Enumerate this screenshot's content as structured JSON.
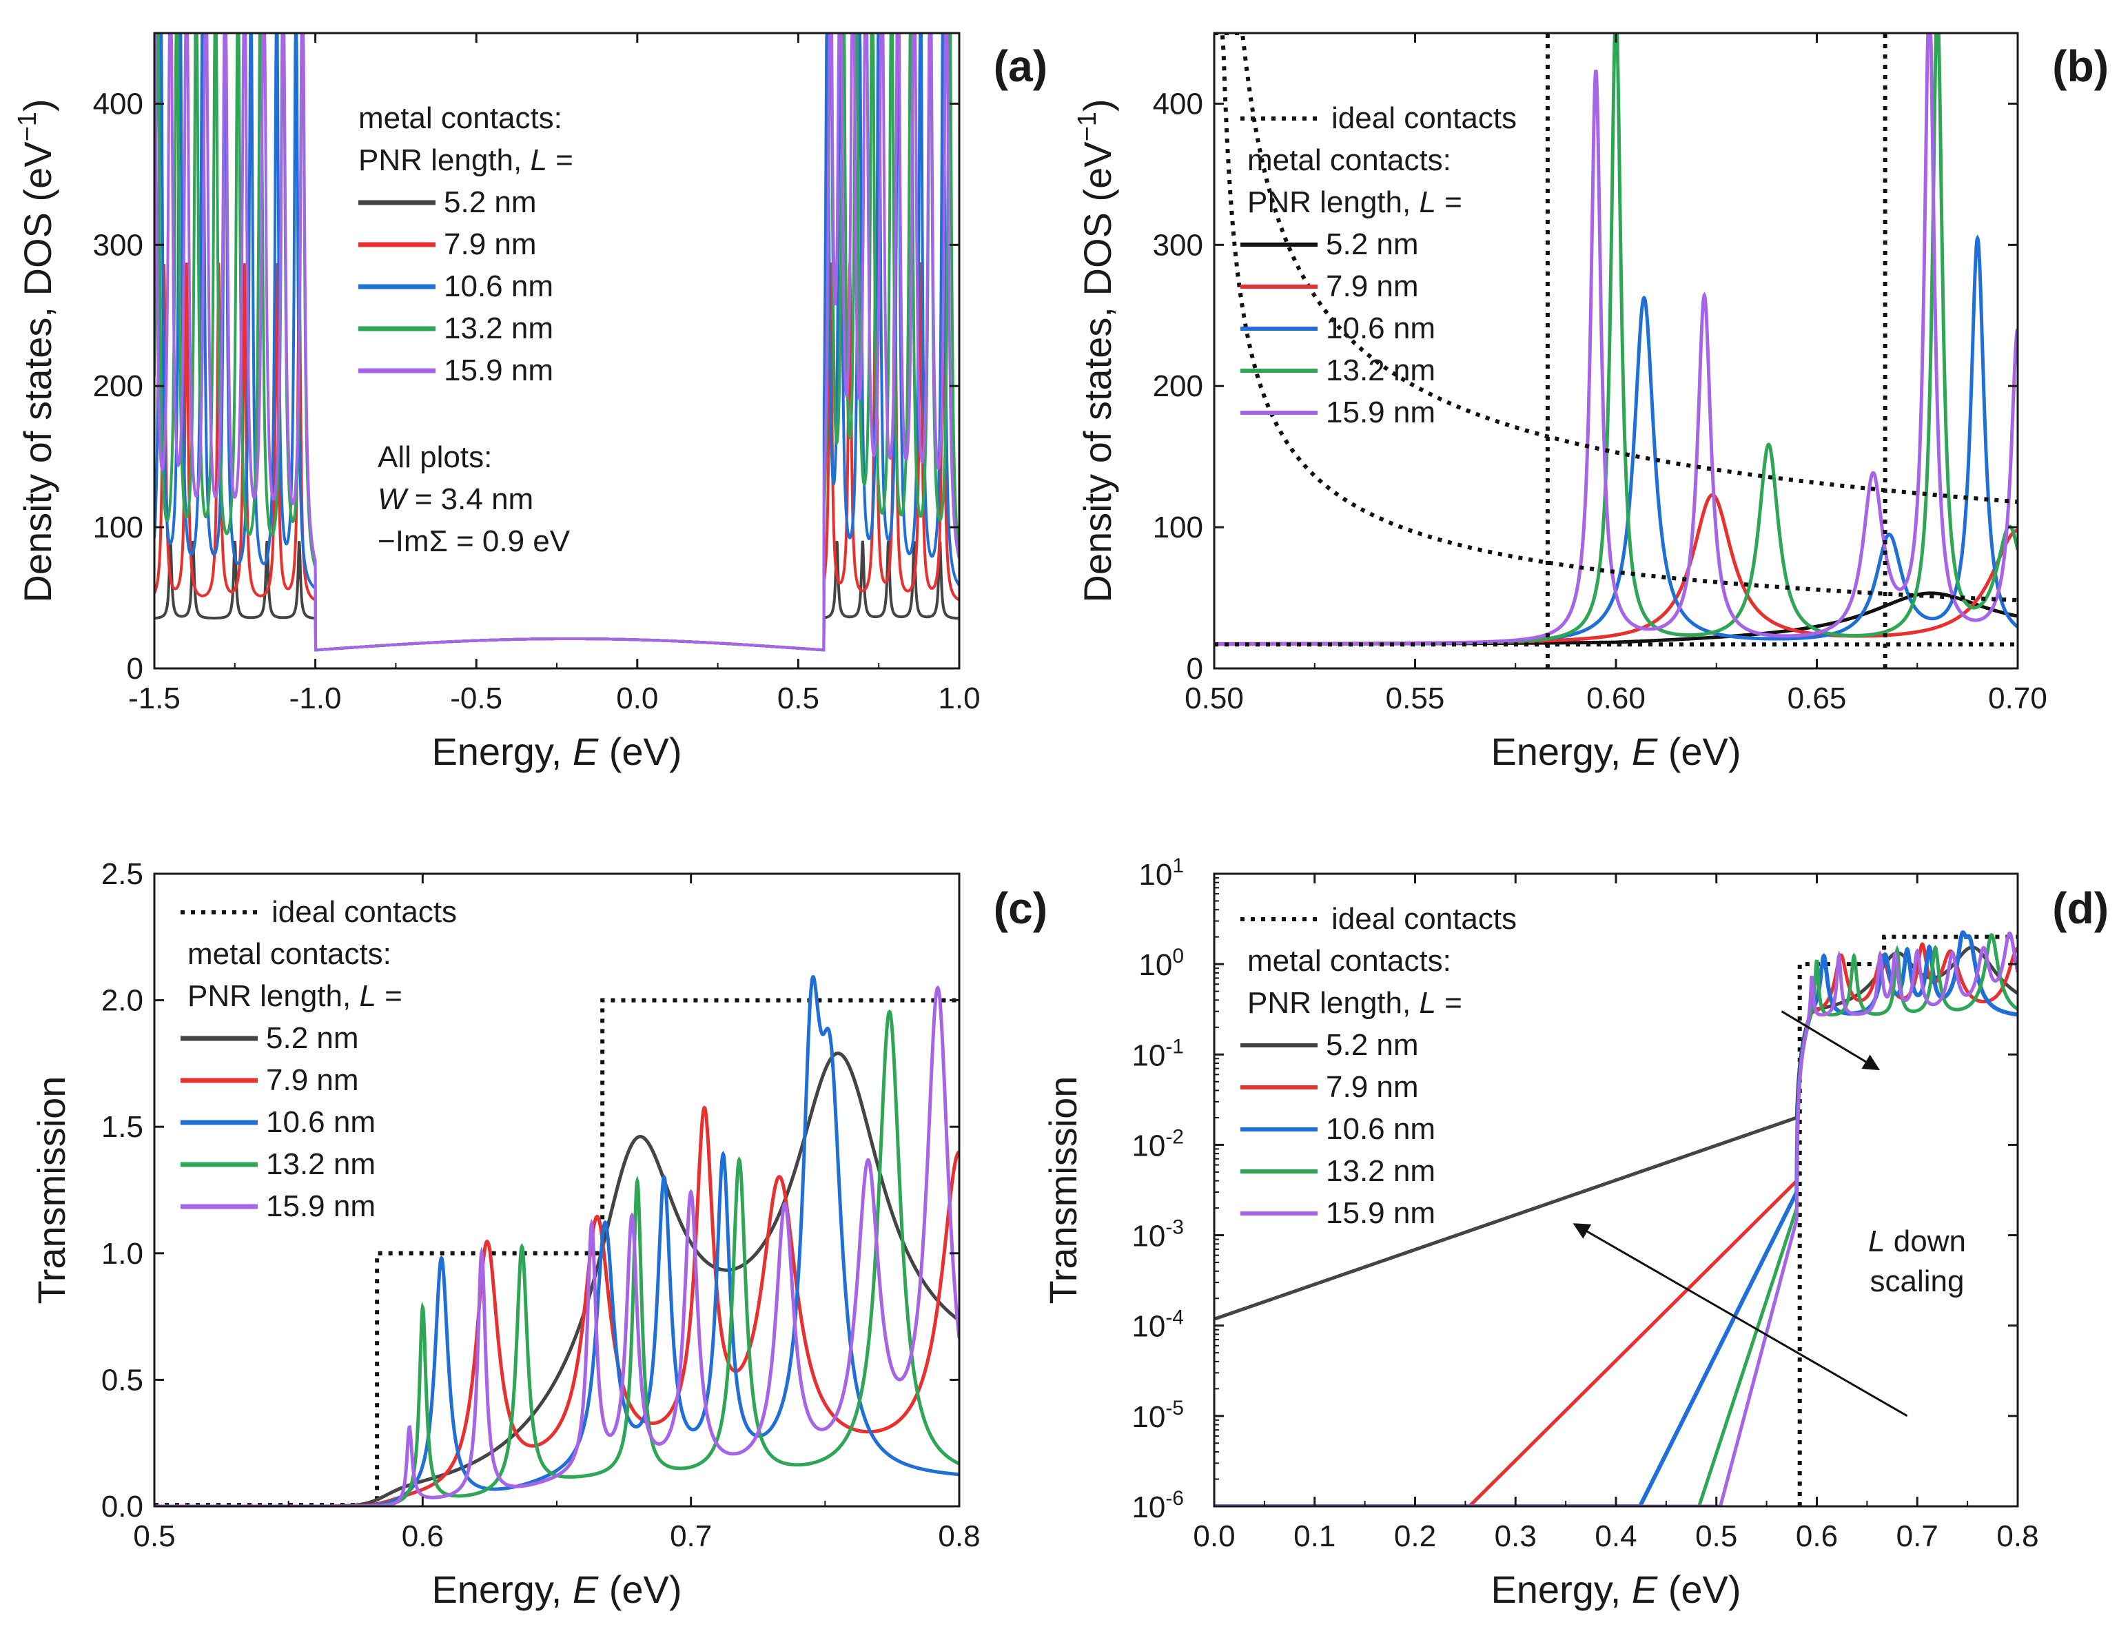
{
  "figure": {
    "panels": [
      {
        "id": "a",
        "label": "(a)",
        "xlabel_pre": "Energy, ",
        "xlabel_var": "E",
        "xlabel_unit": "  (eV)",
        "ylabel_text": "Density of states, DOS  (eV",
        "ylabel_sup": "−1",
        "ylabel_close": ")",
        "xticks": [
          "-1.5",
          "-1.0",
          "-0.5",
          "0.0",
          "0.5",
          "1.0"
        ],
        "yticks": [
          "0",
          "100",
          "200",
          "300",
          "400"
        ],
        "legend_header": [
          "metal contacts:",
          "PNR length, L ="
        ],
        "legend_items": [
          "5.2 nm",
          "7.9 nm",
          "10.6 nm",
          "13.2 nm",
          "15.9 nm"
        ],
        "note_lines": [
          "All plots:",
          "W = 3.4 nm",
          "−ImΣ = 0.9 eV"
        ]
      },
      {
        "id": "b",
        "label": "(b)",
        "xlabel_pre": "Energy, ",
        "xlabel_var": "E",
        "xlabel_unit": "  (eV)",
        "ylabel_text": "Density of states, DOS  (eV",
        "ylabel_sup": "−1",
        "ylabel_close": ")",
        "xticks": [
          "0.50",
          "0.55",
          "0.60",
          "0.65",
          "0.70"
        ],
        "yticks": [
          "0",
          "100",
          "200",
          "300",
          "400"
        ],
        "legend_ideal": "ideal contacts",
        "legend_header": [
          "metal contacts:",
          "PNR length, L ="
        ],
        "legend_items": [
          "5.2 nm",
          "7.9 nm",
          "10.6 nm",
          "13.2 nm",
          "15.9 nm"
        ]
      },
      {
        "id": "c",
        "label": "(c)",
        "xlabel_pre": "Energy, ",
        "xlabel_var": "E",
        "xlabel_unit": "  (eV)",
        "ylabel_text": "Transmission",
        "xticks": [
          "0.5",
          "0.6",
          "0.7",
          "0.8"
        ],
        "yticks": [
          "0.0",
          "0.5",
          "1.0",
          "1.5",
          "2.0",
          "2.5"
        ],
        "legend_ideal": "ideal contacts",
        "legend_header": [
          "metal contacts:",
          "PNR length, L ="
        ],
        "legend_items": [
          "5.2 nm",
          "7.9 nm",
          "10.6 nm",
          "13.2 nm",
          "15.9 nm"
        ]
      },
      {
        "id": "d",
        "label": "(d)",
        "xlabel_pre": "Energy, ",
        "xlabel_var": "E",
        "xlabel_unit": "  (eV)",
        "ylabel_text": "Transmission",
        "xticks": [
          "0.0",
          "0.1",
          "0.2",
          "0.3",
          "0.4",
          "0.5",
          "0.6",
          "0.7",
          "0.8"
        ],
        "yticks_base": "10",
        "yticks_exp": [
          "-6",
          "-5",
          "-4",
          "-3",
          "-2",
          "-1",
          "0",
          "1"
        ],
        "legend_ideal": "ideal contacts",
        "legend_header": [
          "metal contacts:",
          "PNR length, L ="
        ],
        "legend_items": [
          "5.2 nm",
          "7.9 nm",
          "10.6 nm",
          "13.2 nm",
          "15.9 nm"
        ],
        "annotation": [
          "L down",
          "scaling"
        ]
      }
    ]
  },
  "colors": {
    "L5.2": "#444444",
    "L7.9": "#e8312f",
    "L10.6": "#1f6fd6",
    "L13.2": "#2ea656",
    "L15.9": "#a565e6",
    "ideal": "#111111",
    "b_L5.2": "#111111"
  },
  "chart_data": [
    {
      "panel": "a",
      "type": "line",
      "xlabel": "Energy, E (eV)",
      "ylabel": "Density of states, DOS (eV^-1)",
      "xlim": [
        -1.5,
        1.0
      ],
      "ylim": [
        0,
        450
      ],
      "bandgap_edges": {
        "valence_top": -1.0,
        "conduction_bottom": 0.58
      },
      "gap_level": 17,
      "series": [
        {
          "name": "5.2 nm",
          "peaks_valence": [
            -1.45,
            -1.38,
            -1.25,
            -1.15,
            -1.05
          ],
          "peaks_conduction": [
            0.62,
            0.7,
            0.78,
            0.86,
            0.94
          ],
          "peak_height": 55,
          "band_level": 35
        },
        {
          "name": "7.9 nm",
          "peaks_valence": [
            -1.47,
            -1.4,
            -1.3,
            -1.22,
            -1.12,
            -1.05
          ],
          "peaks_conduction": [
            0.6,
            0.66,
            0.74,
            0.8,
            0.88,
            0.95
          ],
          "peak_height": 240,
          "band_level": 45
        },
        {
          "name": "10.6 nm",
          "peaks_valence": [
            -1.48,
            -1.42,
            -1.35,
            -1.28,
            -1.2,
            -1.12,
            -1.06
          ],
          "peaks_conduction": [
            0.59,
            0.63,
            0.69,
            0.75,
            0.81,
            0.88,
            0.95
          ],
          "peak_height": 450,
          "band_level": 50
        },
        {
          "name": "13.2 nm",
          "peaks_valence": [
            -1.49,
            -1.43,
            -1.37,
            -1.31,
            -1.24,
            -1.17,
            -1.1,
            -1.04
          ],
          "peaks_conduction": [
            0.6,
            0.64,
            0.68,
            0.73,
            0.79,
            0.85,
            0.91,
            0.97
          ],
          "peak_height": 450,
          "band_level": 55
        },
        {
          "name": "15.9 nm",
          "peaks_valence": [
            -1.5,
            -1.45,
            -1.4,
            -1.34,
            -1.28,
            -1.22,
            -1.16,
            -1.1,
            -1.04
          ],
          "peaks_conduction": [
            0.6,
            0.63,
            0.67,
            0.71,
            0.76,
            0.81,
            0.86,
            0.91,
            0.96
          ],
          "peak_height": 450,
          "band_level": 55
        }
      ]
    },
    {
      "panel": "b",
      "type": "line",
      "xlabel": "Energy, E (eV)",
      "ylabel": "Density of states, DOS (eV^-1)",
      "xlim": [
        0.5,
        0.7
      ],
      "ylim": [
        0,
        450
      ],
      "ideal_contacts": {
        "band_edges": [
          0.583,
          0.667
        ],
        "baseline": 17
      },
      "series": [
        {
          "name": "5.2 nm",
          "peaks": [
            [
              0.678,
              30,
              0.018
            ]
          ],
          "baseline": 17
        },
        {
          "name": "7.9 nm",
          "peaks": [
            [
              0.624,
              105,
              0.006
            ],
            [
              0.7,
              80,
              0.008
            ]
          ],
          "baseline": 17
        },
        {
          "name": "10.6 nm",
          "peaks": [
            [
              0.607,
              245,
              0.003
            ],
            [
              0.668,
              75,
              0.004
            ],
            [
              0.69,
              285,
              0.002
            ]
          ],
          "baseline": 17
        },
        {
          "name": "13.2 nm",
          "peaks": [
            [
              0.6,
              450,
              0.0015
            ],
            [
              0.638,
              140,
              0.003
            ],
            [
              0.68,
              450,
              0.0015
            ],
            [
              0.698,
              80,
              0.004
            ]
          ],
          "baseline": 17
        },
        {
          "name": "15.9 nm",
          "peaks": [
            [
              0.595,
              405,
              0.0015
            ],
            [
              0.622,
              245,
              0.002
            ],
            [
              0.664,
              115,
              0.003
            ],
            [
              0.678,
              450,
              0.0015
            ],
            [
              0.7,
              220,
              0.002
            ]
          ],
          "baseline": 17
        }
      ]
    },
    {
      "panel": "c",
      "type": "line",
      "xlabel": "Energy, E (eV)",
      "ylabel": "Transmission",
      "xlim": [
        0.5,
        0.8
      ],
      "ylim": [
        0,
        2.5
      ],
      "ideal_contacts": {
        "steps": [
          [
            0.583,
            1.0
          ],
          [
            0.667,
            2.0
          ]
        ]
      },
      "series": [
        {
          "name": "5.2 nm",
          "peaks": [
            [
              0.68,
              1.0,
              0.018
            ],
            [
              0.755,
              1.23,
              0.02
            ]
          ]
        },
        {
          "name": "7.9 nm",
          "peaks": [
            [
              0.624,
              0.98,
              0.005
            ],
            [
              0.665,
              0.95,
              0.006
            ],
            [
              0.705,
              1.3,
              0.004
            ],
            [
              0.733,
              1.09,
              0.008
            ],
            [
              0.8,
              1.22,
              0.008
            ]
          ]
        },
        {
          "name": "10.6 nm",
          "peaks": [
            [
              0.607,
              0.97,
              0.003
            ],
            [
              0.668,
              0.99,
              0.004
            ],
            [
              0.69,
              1.13,
              0.003
            ],
            [
              0.712,
              1.22,
              0.003
            ],
            [
              0.745,
              1.49,
              0.004
            ],
            [
              0.752,
              1.37,
              0.005
            ]
          ]
        },
        {
          "name": "13.2 nm",
          "peaks": [
            [
              0.6,
              0.85,
              0.0015
            ],
            [
              0.637,
              0.97,
              0.0025
            ],
            [
              0.68,
              1.17,
              0.002
            ],
            [
              0.718,
              1.25,
              0.003
            ],
            [
              0.774,
              1.85,
              0.005
            ]
          ]
        },
        {
          "name": "15.9 nm",
          "peaks": [
            [
              0.595,
              0.48,
              0.0012
            ],
            [
              0.622,
              0.97,
              0.0018
            ],
            [
              0.663,
              0.98,
              0.002
            ],
            [
              0.678,
              1.0,
              0.0025
            ],
            [
              0.7,
              1.1,
              0.003
            ],
            [
              0.735,
              1.04,
              0.004
            ],
            [
              0.766,
              1.18,
              0.005
            ],
            [
              0.792,
              1.9,
              0.005
            ]
          ]
        }
      ]
    },
    {
      "panel": "d",
      "type": "line",
      "yscale": "log",
      "xlabel": "Energy, E (eV)",
      "ylabel": "Transmission",
      "xlim": [
        0.0,
        0.8
      ],
      "ylim": [
        1e-06,
        10
      ],
      "ideal_contacts": {
        "steps": [
          [
            0.583,
            1.0
          ],
          [
            0.667,
            2.0
          ]
        ]
      },
      "series": [
        {
          "name": "5.2 nm",
          "tail": {
            "E0": 0.58,
            "T0": 0.02,
            "decay_per_eV": 0.113
          }
        },
        {
          "name": "7.9 nm",
          "tail": {
            "E0": 0.58,
            "T0": 0.004,
            "decay_per_eV": 0.0393
          }
        },
        {
          "name": "10.6 nm",
          "tail": {
            "E0": 0.58,
            "T0": 0.003,
            "decay_per_eV": 0.0195
          }
        },
        {
          "name": "13.2 nm",
          "tail": {
            "E0": 0.58,
            "T0": 0.002,
            "decay_per_eV": 0.0128
          }
        },
        {
          "name": "15.9 nm",
          "tail": {
            "E0": 0.58,
            "T0": 0.0015,
            "decay_per_eV": 0.0104
          }
        }
      ],
      "arrows": [
        {
          "from": [
            0.69,
            1e-05
          ],
          "to": [
            0.36,
            0.0013
          ],
          "direction": "L down scaling (tail rises)"
        },
        {
          "from": [
            0.565,
            0.3
          ],
          "to": [
            0.66,
            0.07
          ],
          "direction": "L down scaling (peaks shift)"
        }
      ]
    }
  ]
}
